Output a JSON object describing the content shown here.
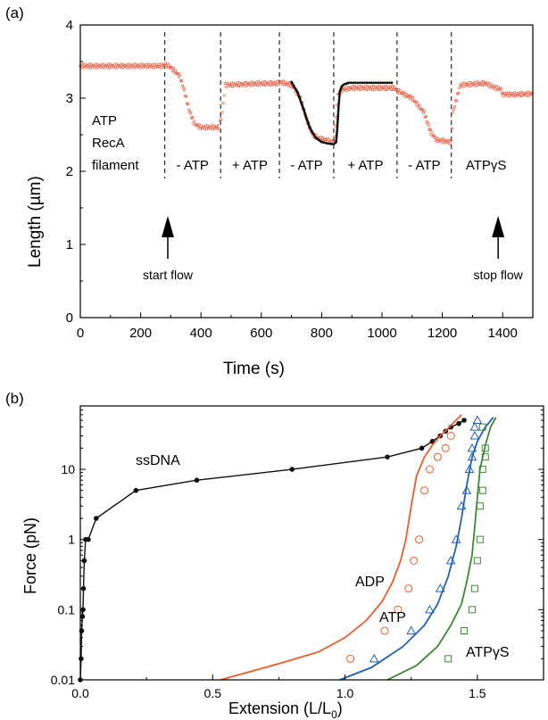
{
  "colors": {
    "raw": "#e8664d",
    "fit": "#111111",
    "ssdna": "#111111",
    "adp": "#f05a28",
    "atp": "#1f5fbf",
    "atpgs": "#3a8a2e"
  },
  "chart_data": [
    {
      "panel": "(a)",
      "type": "scatter",
      "xlabel": "Time (s)",
      "ylabel": "Length (µm)",
      "xlim": [
        0,
        1500
      ],
      "ylim": [
        0,
        4
      ],
      "xticks": [
        "0",
        "200",
        "400",
        "600",
        "800",
        "1000",
        "1200",
        "1400"
      ],
      "yticks": [
        "0",
        "1",
        "2",
        "3",
        "4"
      ],
      "buffer_changes": [
        280,
        465,
        660,
        840,
        1050,
        1230
      ],
      "segment_labels": [
        {
          "x": 372,
          "label": "- ATP"
        },
        {
          "x": 562,
          "label": "+ ATP"
        },
        {
          "x": 750,
          "label": "- ATP"
        },
        {
          "x": 945,
          "label": "+ ATP"
        },
        {
          "x": 1140,
          "label": "- ATP"
        },
        {
          "x": 1345,
          "label": "ATPγS"
        }
      ],
      "side_labels": [
        "ATP",
        "RecA",
        "filament"
      ],
      "arrows": [
        {
          "x": 290,
          "label": "start flow"
        },
        {
          "x": 1385,
          "label": "stop flow"
        }
      ],
      "raw_series": {
        "name": "length",
        "x": [
          0,
          270,
          282,
          300,
          330,
          345,
          360,
          375,
          385,
          400,
          440,
          460,
          470,
          480,
          600,
          650,
          662,
          700,
          730,
          750,
          770,
          790,
          800,
          840,
          845,
          855,
          870,
          900,
          1040,
          1052,
          1100,
          1140,
          1160,
          1180,
          1228,
          1235,
          1260,
          1330,
          1345,
          1370,
          1395,
          1400,
          1420,
          1440,
          1500
        ],
        "y": [
          3.44,
          3.44,
          3.46,
          3.42,
          3.3,
          3.1,
          2.85,
          2.68,
          2.63,
          2.6,
          2.6,
          2.6,
          2.8,
          3.18,
          3.2,
          3.2,
          3.22,
          3.18,
          3.0,
          2.7,
          2.5,
          2.45,
          2.44,
          2.4,
          2.6,
          3.05,
          3.12,
          3.14,
          3.14,
          3.1,
          3.0,
          2.8,
          2.55,
          2.43,
          2.4,
          2.8,
          3.18,
          3.2,
          3.2,
          3.15,
          3.12,
          3.05,
          3.05,
          3.05,
          3.06
        ]
      },
      "fit_series": {
        "name": "fit",
        "x": [
          700,
          720,
          740,
          760,
          780,
          800,
          820,
          840,
          848,
          852,
          856,
          860,
          866,
          875,
          890,
          1040
        ],
        "y": [
          3.22,
          3.08,
          2.85,
          2.6,
          2.46,
          2.4,
          2.38,
          2.37,
          2.4,
          2.6,
          2.88,
          3.08,
          3.16,
          3.19,
          3.21,
          3.21
        ]
      }
    },
    {
      "panel": "(b)",
      "type": "line",
      "xlabel": "Extension (L/L0)",
      "xlabel_main": "Extension (L/L",
      "xlabel_sub": "0",
      "xlabel_close": ")",
      "ylabel": "Force (pN)",
      "xlim": [
        0,
        1.75
      ],
      "ylim": [
        0.01,
        80
      ],
      "yscale": "log",
      "xticks": [
        "0.0",
        "0.5",
        "1.0",
        "1.5"
      ],
      "yticks": [
        "0.01",
        "0.1",
        "1",
        "10"
      ],
      "series": [
        {
          "name": "ssDNA",
          "marker": "dot",
          "x": [
            0.0,
            0.003,
            0.005,
            0.008,
            0.01,
            0.012,
            0.015,
            0.02,
            0.03,
            0.06,
            0.21,
            0.44,
            0.8,
            1.16,
            1.29,
            1.33,
            1.36,
            1.38,
            1.4,
            1.43,
            1.45
          ],
          "y": [
            0.01,
            0.02,
            0.05,
            0.08,
            0.1,
            0.2,
            0.5,
            1.0,
            1.0,
            2.0,
            5.0,
            7.0,
            10.0,
            15.0,
            20.0,
            25.0,
            30.0,
            35.0,
            40.0,
            45.0,
            50.0
          ]
        },
        {
          "name": "ADP",
          "marker": "circle",
          "points_x": [
            1.02,
            1.15,
            1.2,
            1.24,
            1.26,
            1.28,
            1.3,
            1.32,
            1.35,
            1.38,
            1.4
          ],
          "points_y": [
            0.02,
            0.05,
            0.1,
            0.2,
            0.5,
            1.0,
            5.0,
            10.0,
            15.0,
            20.0,
            30.0
          ],
          "fit_x": [
            0.53,
            0.75,
            0.9,
            1.0,
            1.08,
            1.14,
            1.18,
            1.21,
            1.23,
            1.25,
            1.27,
            1.3,
            1.33,
            1.36,
            1.4,
            1.44
          ],
          "fit_y": [
            0.01,
            0.017,
            0.025,
            0.04,
            0.07,
            0.13,
            0.25,
            0.5,
            1.0,
            3.0,
            8.0,
            15.0,
            22.0,
            30.0,
            42.0,
            60.0
          ]
        },
        {
          "name": "ATP",
          "marker": "triangle",
          "points_x": [
            1.11,
            1.25,
            1.32,
            1.36,
            1.4,
            1.42,
            1.44,
            1.46,
            1.47,
            1.48,
            1.48,
            1.49,
            1.49,
            1.5
          ],
          "points_y": [
            0.02,
            0.05,
            0.1,
            0.2,
            0.5,
            1.0,
            3.0,
            5.0,
            10.0,
            15.0,
            20.0,
            30.0,
            40.0,
            50.0
          ],
          "fit_x": [
            0.98,
            1.1,
            1.22,
            1.3,
            1.35,
            1.39,
            1.42,
            1.44,
            1.46,
            1.48,
            1.5,
            1.53,
            1.56
          ],
          "fit_y": [
            0.01,
            0.015,
            0.03,
            0.06,
            0.12,
            0.3,
            0.8,
            2.0,
            6.0,
            15.0,
            25.0,
            40.0,
            55.0
          ]
        },
        {
          "name": "ATPγS",
          "marker": "square",
          "points_x": [
            1.39,
            1.45,
            1.48,
            1.49,
            1.5,
            1.51,
            1.51,
            1.52,
            1.52,
            1.53,
            1.53,
            1.52
          ],
          "points_y": [
            0.02,
            0.05,
            0.1,
            0.2,
            0.5,
            1.0,
            3.0,
            5.0,
            10.0,
            15.0,
            20.0,
            40.0
          ],
          "fit_x": [
            1.16,
            1.27,
            1.35,
            1.4,
            1.44,
            1.46,
            1.48,
            1.49,
            1.5,
            1.51,
            1.53,
            1.55,
            1.57
          ],
          "fit_y": [
            0.01,
            0.016,
            0.03,
            0.06,
            0.12,
            0.25,
            0.6,
            1.5,
            4.0,
            10.0,
            22.0,
            40.0,
            55.0
          ]
        }
      ]
    }
  ]
}
